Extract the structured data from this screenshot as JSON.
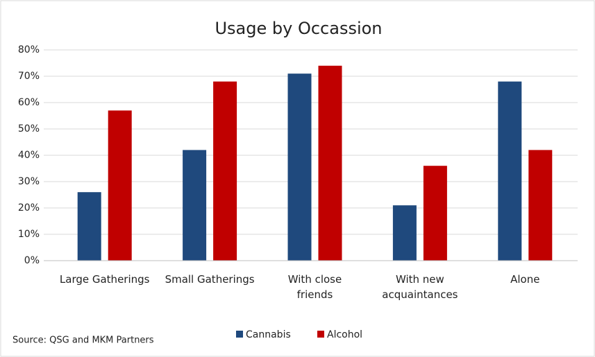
{
  "chart_data": {
    "type": "bar",
    "title": "Usage by Occassion",
    "categories": [
      "Large Gatherings",
      "Small Gatherings",
      "With close friends",
      "With new acquaintances",
      "Alone"
    ],
    "series": [
      {
        "name": "Cannabis",
        "color": "#1f497d",
        "values": [
          26,
          42,
          71,
          21,
          68
        ]
      },
      {
        "name": "Alcohol",
        "color": "#c00000",
        "values": [
          57,
          68,
          74,
          36,
          42
        ]
      }
    ],
    "ylim": [
      0,
      80
    ],
    "yticks": [
      {
        "value": 0,
        "label": "0%"
      },
      {
        "value": 10,
        "label": "10%"
      },
      {
        "value": 20,
        "label": "20%"
      },
      {
        "value": 30,
        "label": "30%"
      },
      {
        "value": 40,
        "label": "40%"
      },
      {
        "value": 50,
        "label": "50%"
      },
      {
        "value": 60,
        "label": "60%"
      },
      {
        "value": 70,
        "label": "70%"
      },
      {
        "value": 80,
        "label": "80%"
      }
    ],
    "grid": true,
    "legend": "bottom",
    "source": "Source: QSG and MKM Partners"
  }
}
